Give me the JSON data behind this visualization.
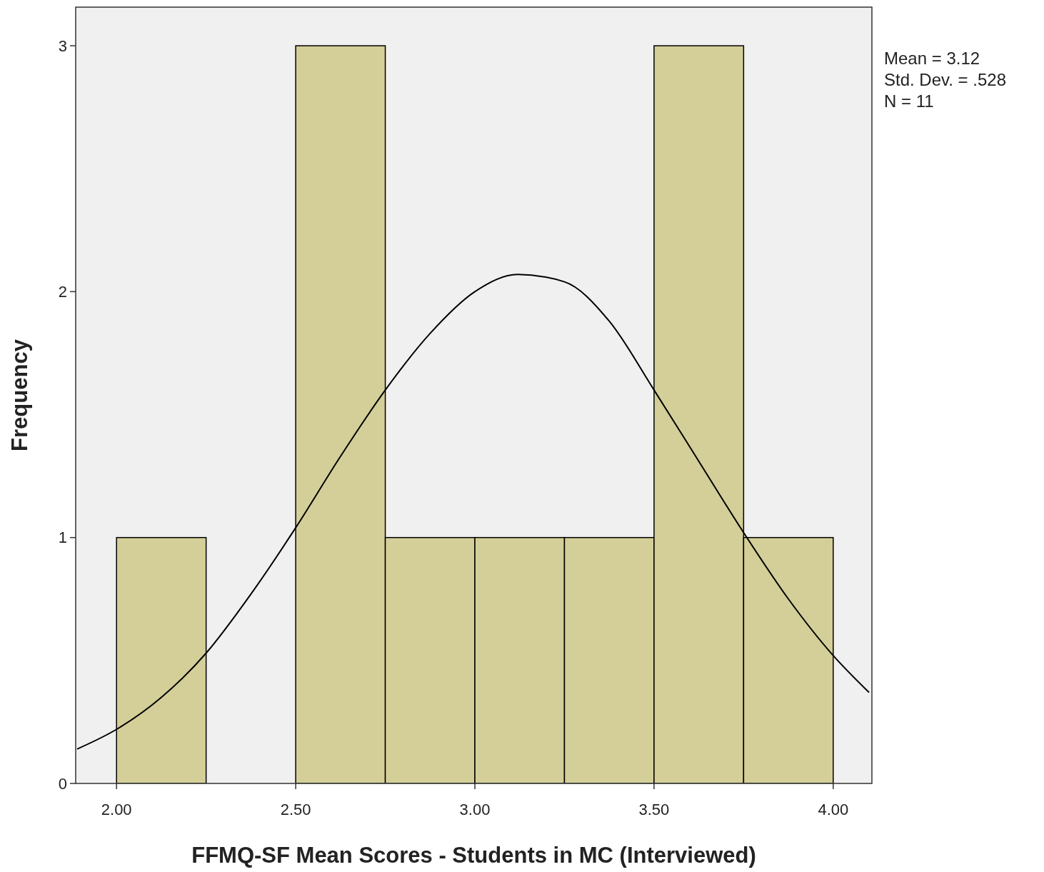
{
  "chart_data": {
    "type": "histogram",
    "xlabel": "FFMQ-SF Mean Scores - Students in MC (Interviewed)",
    "ylabel": "Frequency",
    "annotations": [
      "Mean = 3.12",
      "Std. Dev. = .528",
      "N = 11"
    ],
    "series": [
      {
        "bins": [
          2,
          2.25,
          2.5,
          2.75,
          3,
          3.25,
          3.5,
          3.75,
          4
        ],
        "values": [
          1,
          0,
          3,
          1,
          1,
          1,
          3,
          1
        ],
        "color": "#d4cf98"
      },
      {
        "type": "line",
        "x": [
          1.89,
          2,
          2.125,
          2.25,
          2.375,
          2.5,
          2.625,
          2.75,
          2.875,
          3,
          3.12,
          3.25,
          3.375,
          3.5,
          3.625,
          3.75,
          3.875,
          4,
          4.1
        ],
        "values": [
          0.14,
          0.22,
          0.35,
          0.53,
          0.77,
          1.04,
          1.33,
          1.6,
          1.83,
          2,
          2.07,
          2.04,
          1.88,
          1.6,
          1.31,
          1.02,
          0.75,
          0.52,
          0.37
        ],
        "color": "#000000"
      }
    ],
    "xlim": [
      1.886,
      4.108
    ],
    "ylim": [
      0,
      3.157
    ],
    "xticks": [
      {
        "value": 2,
        "label": "2.00"
      },
      {
        "value": 2.5,
        "label": "2.50"
      },
      {
        "value": 3,
        "label": "3.00"
      },
      {
        "value": 3.5,
        "label": "3.50"
      },
      {
        "value": 4,
        "label": "4.00"
      }
    ],
    "yticks": [
      0,
      1,
      2,
      3
    ],
    "grid": false
  }
}
